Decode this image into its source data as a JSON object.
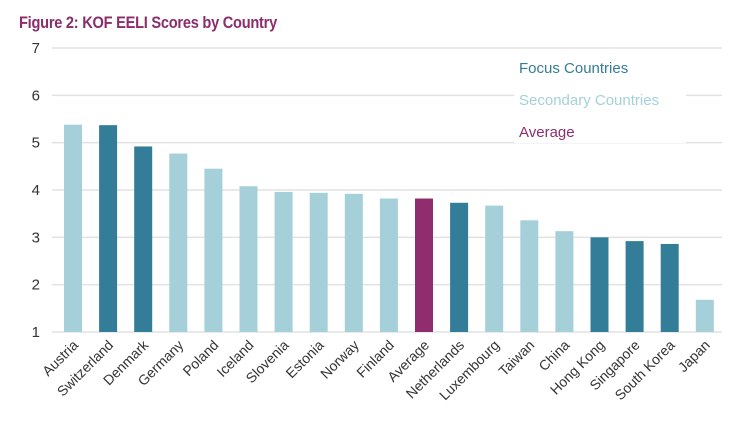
{
  "chart_data": {
    "type": "bar",
    "title": "Figure 2: KOF EELI Scores by Country",
    "xlabel": "",
    "ylabel": "",
    "ylim": [
      1,
      7
    ],
    "yticks": [
      "1",
      "2",
      "3",
      "4",
      "5",
      "6",
      "7"
    ],
    "grid": true,
    "legend_position": "top-right",
    "categories": [
      "Austria",
      "Switzerland",
      "Denmark",
      "Germany",
      "Poland",
      "Iceland",
      "Slovenia",
      "Estonia",
      "Norway",
      "Finland",
      "Average",
      "Netherlands",
      "Luxembourg",
      "Taiwan",
      "China",
      "Hong Kong",
      "Singapore",
      "South Korea",
      "Japan"
    ],
    "values": [
      5.38,
      5.37,
      4.92,
      4.77,
      4.45,
      4.08,
      3.96,
      3.94,
      3.92,
      3.82,
      3.82,
      3.73,
      3.67,
      3.36,
      3.13,
      3.0,
      2.92,
      2.86,
      1.68
    ],
    "groups": [
      "secondary",
      "focus",
      "focus",
      "secondary",
      "secondary",
      "secondary",
      "secondary",
      "secondary",
      "secondary",
      "secondary",
      "average",
      "focus",
      "secondary",
      "secondary",
      "secondary",
      "focus",
      "focus",
      "focus",
      "secondary"
    ],
    "legend": [
      {
        "key": "focus",
        "label": "Focus Countries",
        "color": "#347d98"
      },
      {
        "key": "secondary",
        "label": "Secondary Countries",
        "color": "#a5d0da"
      },
      {
        "key": "average",
        "label": "Average",
        "color": "#8f2d6e"
      }
    ]
  },
  "colors": {
    "title": "#8b2c6d",
    "gridline": "#e2e2e2",
    "axis_text": "#333333"
  }
}
